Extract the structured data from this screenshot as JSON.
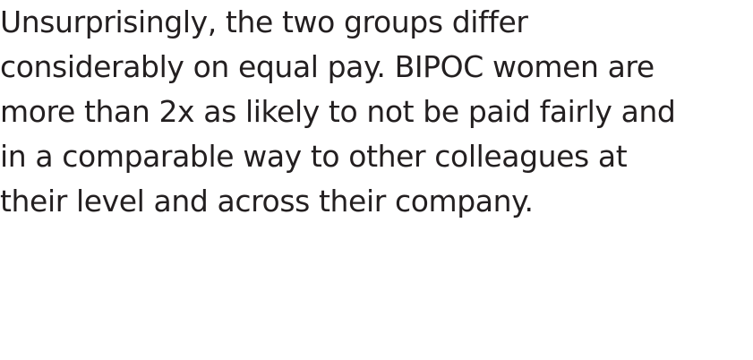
{
  "paragraph": {
    "lines": [
      "Unsurprisingly, the two groups differ",
      "considerably on equal pay. BIPOC women are",
      "more than 2x as likely to not be paid fairly and",
      "in a comparable way to other colleagues at",
      "their level and across their company."
    ]
  }
}
